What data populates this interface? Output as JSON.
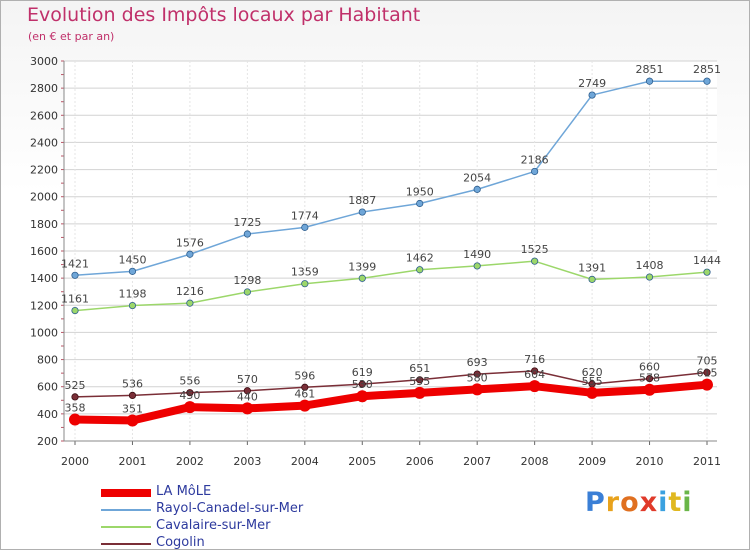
{
  "title": "Evolution des Impôts locaux par Habitant",
  "subtitle": "(en € et par an)",
  "brand": {
    "text": "Proxiti",
    "letters": [
      "P",
      "r",
      "o",
      "x",
      "i",
      "t",
      "i"
    ],
    "letter_colors": [
      "#3a7fd6",
      "#e8a21c",
      "#e07020",
      "#e03a2a",
      "#3aa1e0",
      "#e0b820",
      "#6ab648"
    ]
  },
  "chart_data": {
    "type": "line",
    "categories": [
      "2000",
      "2001",
      "2002",
      "2003",
      "2004",
      "2005",
      "2006",
      "2007",
      "2008",
      "2009",
      "2010",
      "2011"
    ],
    "y_ticks": [
      "200",
      "400",
      "600",
      "800",
      "1000",
      "1200",
      "1400",
      "1600",
      "1800",
      "2000",
      "2200",
      "2400",
      "2600",
      "2800",
      "3000"
    ],
    "ylim": [
      200,
      3000
    ],
    "grid": true,
    "legend_position": "bottom-left",
    "series": [
      {
        "name": "LA MôLE",
        "color": "#ee0000",
        "values": [
          358,
          351,
          450,
          440,
          461,
          530,
          555,
          580,
          604,
          555,
          578,
          615
        ],
        "labels": [
          "358",
          "351",
          "450",
          "440",
          "461",
          "530",
          "555",
          "580",
          "604",
          "555",
          "578",
          "615"
        ]
      },
      {
        "name": "Rayol-Canadel-sur-Mer",
        "color": "#6fa6d8",
        "values": [
          1421,
          1450,
          1576,
          1725,
          1774,
          1887,
          1950,
          2054,
          2186,
          2749,
          2851,
          2851
        ],
        "labels": [
          "1421",
          "1450",
          "1576",
          "1725",
          "1774",
          "1887",
          "1950",
          "2054",
          "2186",
          "2749",
          "2851",
          "2851"
        ]
      },
      {
        "name": "Cavalaire-sur-Mer",
        "color": "#9cd76a",
        "values": [
          1161,
          1198,
          1216,
          1298,
          1359,
          1399,
          1462,
          1490,
          1525,
          1391,
          1408,
          1444
        ],
        "labels": [
          "1161",
          "1198",
          "1216",
          "1298",
          "1359",
          "1399",
          "1462",
          "1490",
          "1525",
          "1391",
          "1408",
          "1444"
        ]
      },
      {
        "name": "Cogolin",
        "color": "#7a2e37",
        "values": [
          525,
          536,
          556,
          570,
          596,
          619,
          651,
          693,
          716,
          620,
          660,
          705
        ],
        "labels": [
          "525",
          "536",
          "556",
          "570",
          "596",
          "619",
          "651",
          "693",
          "716",
          "620",
          "660",
          "705"
        ]
      }
    ]
  }
}
